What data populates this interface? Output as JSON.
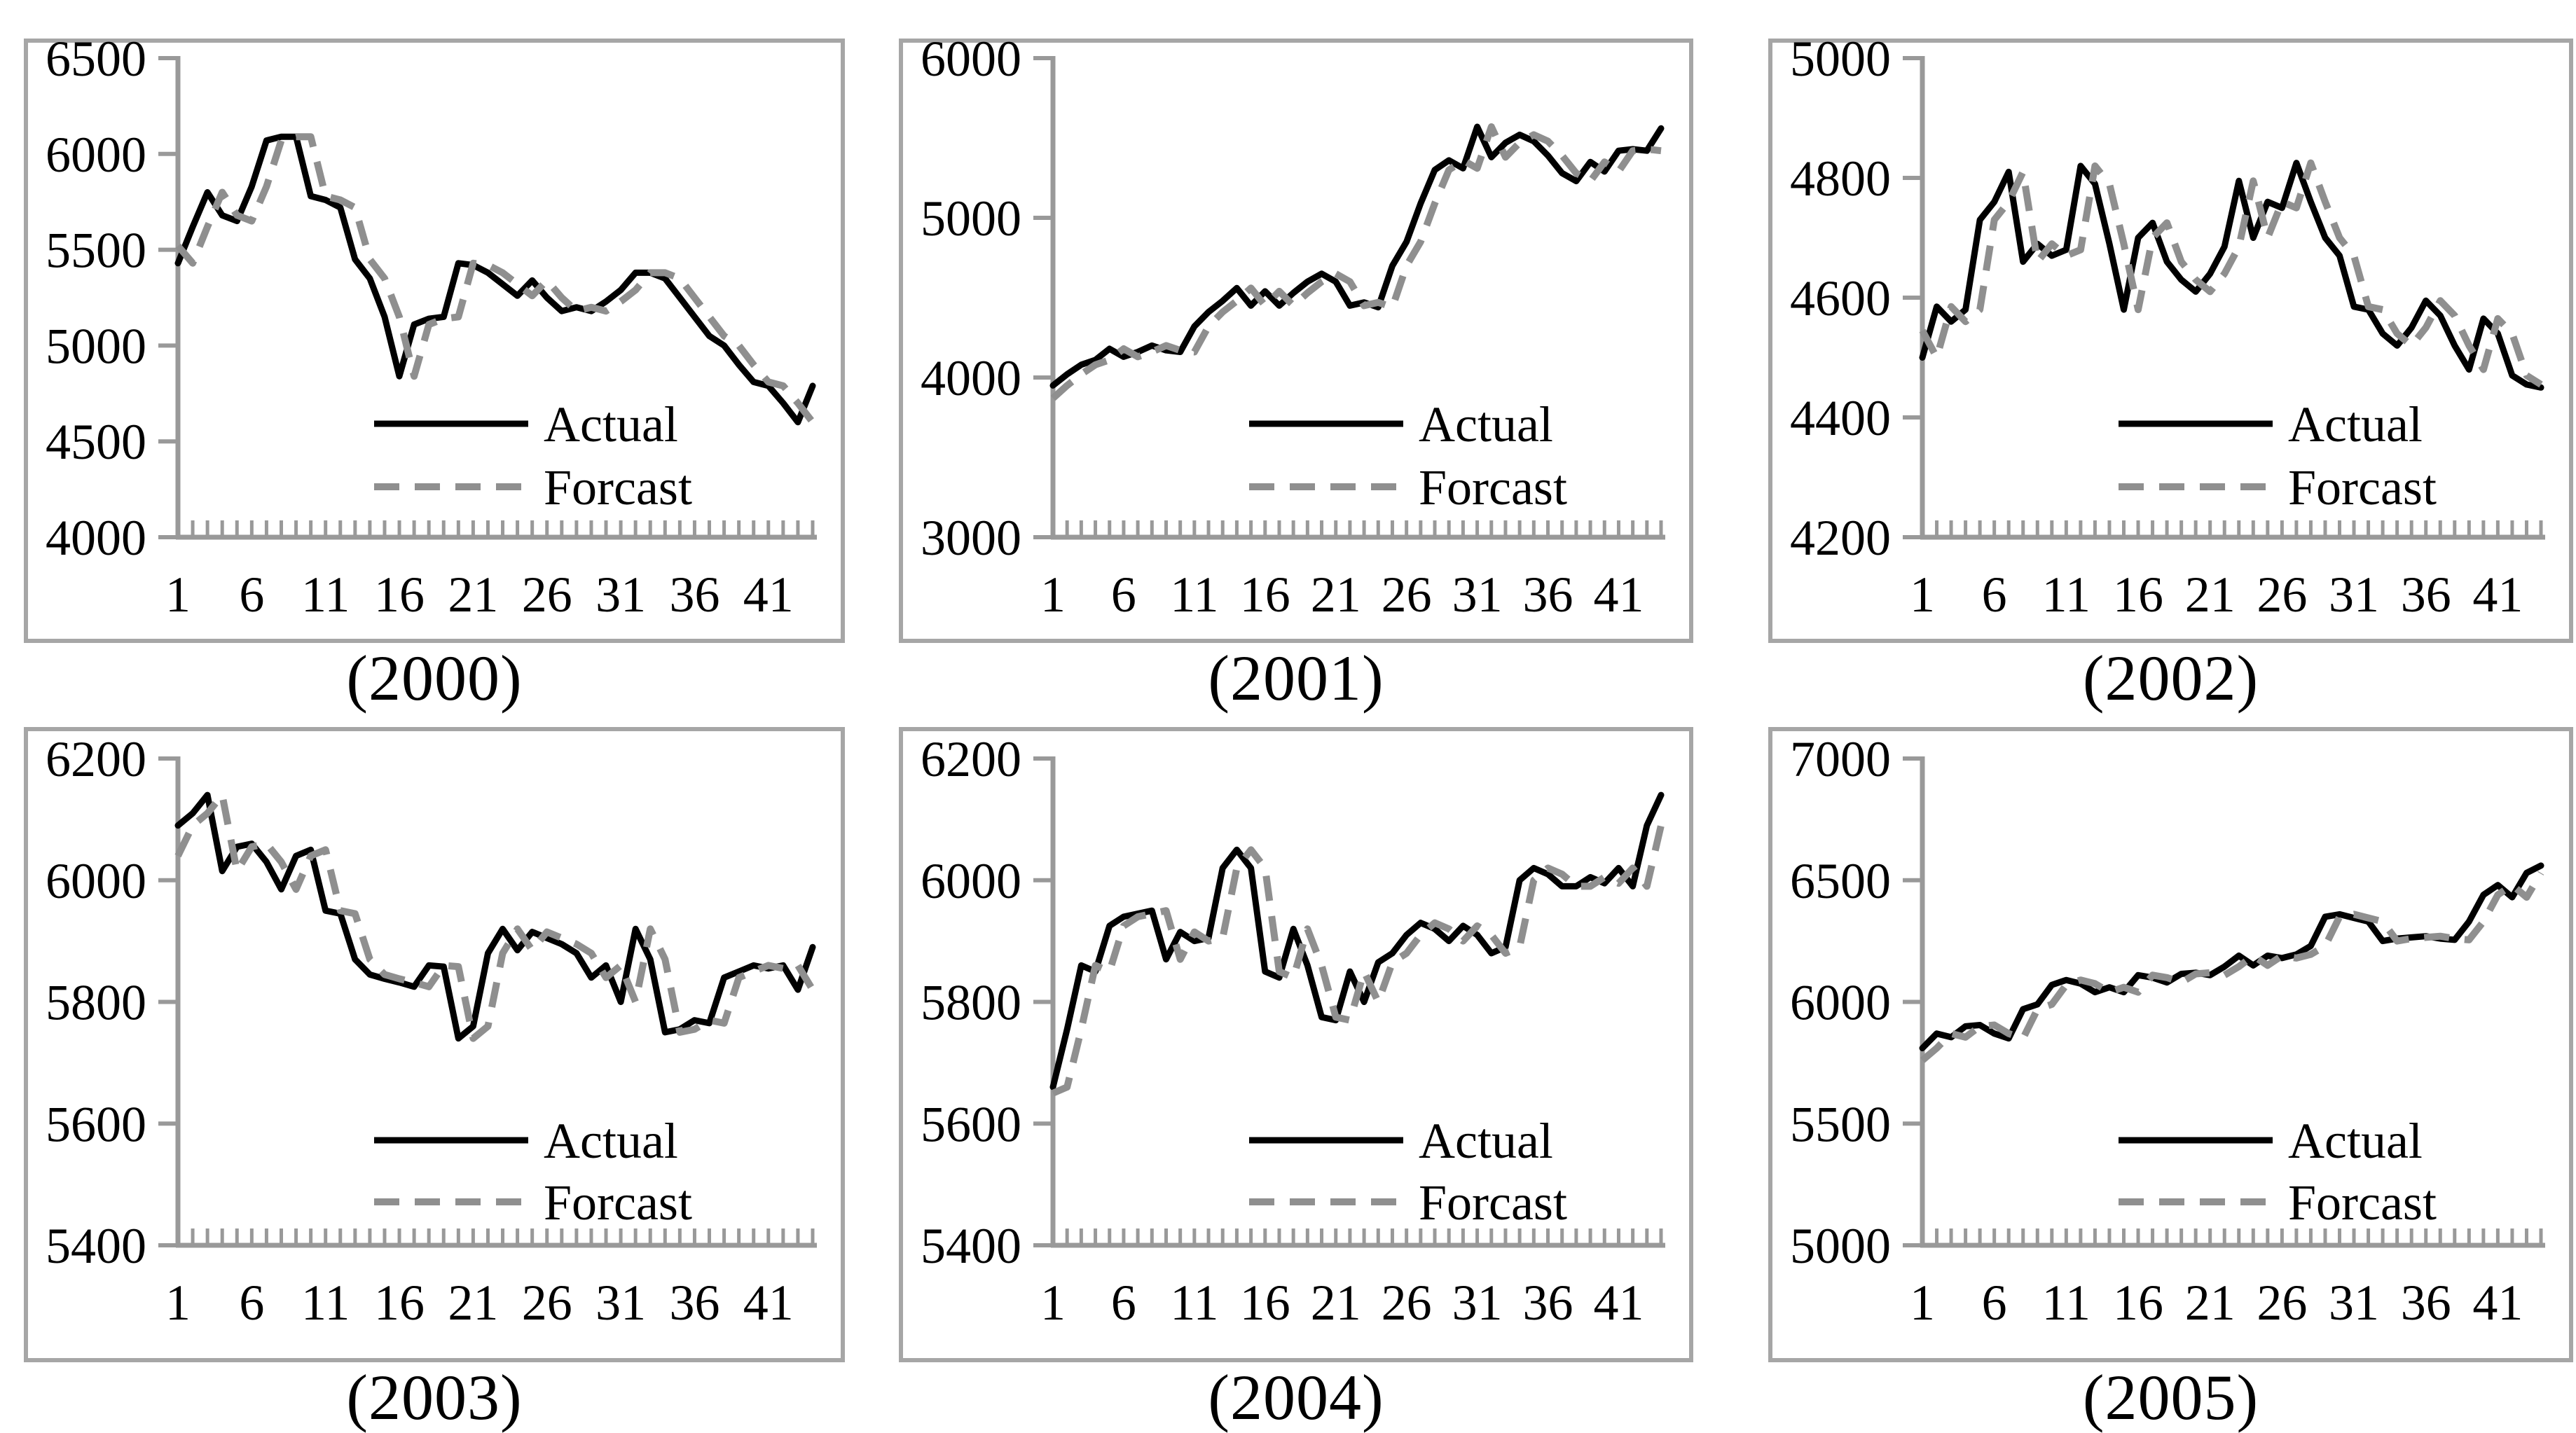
{
  "legend": {
    "actual_label": "Actual",
    "forecast_label": "Forcast"
  },
  "colors": {
    "actual_line": "#000000",
    "forecast_line": "#8f8f8f",
    "axis": "#999999",
    "frame_border": "#a6a6a6",
    "text": "#000000",
    "background": "#ffffff"
  },
  "chart_data": [
    {
      "type": "line",
      "caption": "(2000)",
      "ylim": [
        4000,
        6500
      ],
      "y_ticks": [
        6500,
        6000,
        5500,
        5000,
        4500,
        4000
      ],
      "x_tick_labels": [
        1,
        6,
        11,
        16,
        21,
        26,
        31,
        36,
        41
      ],
      "grid": false,
      "legend_position": "inside-lower-right",
      "series": [
        {
          "name": "Actual",
          "values": [
            5430,
            5620,
            5800,
            5680,
            5650,
            5830,
            6070,
            6090,
            6090,
            5780,
            5760,
            5720,
            5450,
            5350,
            5150,
            4840,
            5110,
            5140,
            5150,
            5430,
            5420,
            5380,
            5320,
            5260,
            5340,
            5250,
            5180,
            5200,
            5180,
            5230,
            5290,
            5380,
            5380,
            5350,
            5250,
            5150,
            5050,
            5000,
            4900,
            4810,
            4790,
            4700,
            4600,
            4790
          ]
        },
        {
          "name": "Forcast",
          "values": [
            5520,
            5430,
            5620,
            5800,
            5680,
            5650,
            5830,
            6070,
            6090,
            6090,
            5780,
            5760,
            5720,
            5450,
            5350,
            5150,
            4840,
            5110,
            5140,
            5150,
            5430,
            5420,
            5380,
            5320,
            5260,
            5340,
            5250,
            5180,
            5200,
            5180,
            5230,
            5290,
            5380,
            5380,
            5350,
            5250,
            5150,
            5050,
            5000,
            4900,
            4810,
            4790,
            4700,
            4600
          ]
        }
      ]
    },
    {
      "type": "line",
      "caption": "(2001)",
      "ylim": [
        3000,
        6000
      ],
      "y_ticks": [
        6000,
        5000,
        4000,
        3000
      ],
      "x_tick_labels": [
        1,
        6,
        11,
        16,
        21,
        26,
        31,
        36,
        41
      ],
      "grid": false,
      "legend_position": "inside-lower-right",
      "series": [
        {
          "name": "Actual",
          "values": [
            3950,
            4020,
            4080,
            4110,
            4180,
            4130,
            4160,
            4200,
            4170,
            4160,
            4320,
            4410,
            4480,
            4560,
            4450,
            4540,
            4450,
            4530,
            4600,
            4650,
            4600,
            4450,
            4470,
            4440,
            4700,
            4850,
            5090,
            5300,
            5360,
            5310,
            5570,
            5380,
            5470,
            5520,
            5480,
            5390,
            5280,
            5230,
            5350,
            5290,
            5420,
            5430,
            5420,
            5560
          ]
        },
        {
          "name": "Forcast",
          "values": [
            3870,
            3950,
            4020,
            4080,
            4110,
            4180,
            4130,
            4160,
            4200,
            4170,
            4160,
            4320,
            4410,
            4480,
            4560,
            4450,
            4540,
            4450,
            4530,
            4600,
            4650,
            4600,
            4450,
            4470,
            4440,
            4700,
            4850,
            5090,
            5300,
            5360,
            5310,
            5570,
            5380,
            5470,
            5520,
            5480,
            5390,
            5280,
            5230,
            5350,
            5290,
            5420,
            5430,
            5420
          ]
        }
      ]
    },
    {
      "type": "line",
      "caption": "(2002)",
      "ylim": [
        4200,
        5000
      ],
      "y_ticks": [
        5000,
        4800,
        4600,
        4400,
        4200
      ],
      "x_tick_labels": [
        1,
        6,
        11,
        16,
        21,
        26,
        31,
        36,
        41
      ],
      "grid": false,
      "legend_position": "inside-lower-right",
      "series": [
        {
          "name": "Actual",
          "values": [
            4500,
            4585,
            4560,
            4580,
            4730,
            4760,
            4810,
            4660,
            4690,
            4670,
            4680,
            4820,
            4790,
            4690,
            4580,
            4700,
            4725,
            4660,
            4630,
            4610,
            4640,
            4685,
            4795,
            4700,
            4760,
            4750,
            4825,
            4760,
            4700,
            4670,
            4585,
            4580,
            4540,
            4520,
            4550,
            4595,
            4570,
            4520,
            4480,
            4565,
            4540,
            4470,
            4455,
            4450
          ]
        },
        {
          "name": "Forcast",
          "values": [
            4545,
            4500,
            4585,
            4560,
            4580,
            4730,
            4760,
            4810,
            4660,
            4690,
            4670,
            4680,
            4820,
            4790,
            4690,
            4580,
            4700,
            4725,
            4660,
            4630,
            4610,
            4640,
            4685,
            4795,
            4700,
            4760,
            4750,
            4825,
            4760,
            4700,
            4670,
            4585,
            4580,
            4540,
            4520,
            4550,
            4595,
            4570,
            4520,
            4480,
            4565,
            4540,
            4470,
            4455
          ]
        }
      ]
    },
    {
      "type": "line",
      "caption": "(2003)",
      "ylim": [
        5400,
        6200
      ],
      "y_ticks": [
        6200,
        6000,
        5800,
        5600,
        5400
      ],
      "x_tick_labels": [
        1,
        6,
        11,
        16,
        21,
        26,
        31,
        36,
        41
      ],
      "grid": false,
      "legend_position": "inside-lower-right",
      "series": [
        {
          "name": "Actual",
          "values": [
            6090,
            6110,
            6140,
            6015,
            6055,
            6060,
            6030,
            5985,
            6040,
            6050,
            5950,
            5945,
            5870,
            5845,
            5838,
            5832,
            5825,
            5860,
            5858,
            5740,
            5760,
            5880,
            5920,
            5885,
            5915,
            5905,
            5895,
            5880,
            5840,
            5860,
            5800,
            5920,
            5870,
            5750,
            5755,
            5770,
            5765,
            5840,
            5850,
            5860,
            5855,
            5860,
            5820,
            5890
          ]
        },
        {
          "name": "Forcast",
          "values": [
            6040,
            6090,
            6110,
            6140,
            6015,
            6055,
            6060,
            6030,
            5985,
            6040,
            6050,
            5950,
            5945,
            5870,
            5845,
            5838,
            5832,
            5825,
            5860,
            5858,
            5740,
            5760,
            5880,
            5920,
            5885,
            5915,
            5905,
            5895,
            5880,
            5840,
            5860,
            5800,
            5920,
            5870,
            5750,
            5755,
            5770,
            5765,
            5840,
            5850,
            5860,
            5855,
            5860,
            5820
          ]
        }
      ]
    },
    {
      "type": "line",
      "caption": "(2004)",
      "ylim": [
        5400,
        6200
      ],
      "y_ticks": [
        6200,
        6000,
        5800,
        5600,
        5400
      ],
      "x_tick_labels": [
        1,
        6,
        11,
        16,
        21,
        26,
        31,
        36,
        41
      ],
      "grid": false,
      "legend_position": "inside-lower-right",
      "series": [
        {
          "name": "Actual",
          "values": [
            5660,
            5755,
            5860,
            5850,
            5925,
            5940,
            5945,
            5950,
            5870,
            5915,
            5900,
            5905,
            6020,
            6050,
            6020,
            5850,
            5840,
            5920,
            5860,
            5775,
            5770,
            5850,
            5800,
            5865,
            5880,
            5910,
            5930,
            5920,
            5900,
            5925,
            5910,
            5880,
            5890,
            6000,
            6020,
            6010,
            5990,
            5990,
            6005,
            5995,
            6020,
            5990,
            6090,
            6140
          ]
        },
        {
          "name": "Forcast",
          "values": [
            5650,
            5660,
            5755,
            5860,
            5850,
            5925,
            5940,
            5945,
            5950,
            5870,
            5915,
            5900,
            5905,
            6020,
            6050,
            6020,
            5850,
            5840,
            5920,
            5860,
            5775,
            5770,
            5850,
            5800,
            5865,
            5880,
            5910,
            5930,
            5920,
            5900,
            5925,
            5910,
            5880,
            5890,
            6000,
            6020,
            6010,
            5990,
            5990,
            6005,
            5995,
            6020,
            5990,
            6090
          ]
        }
      ]
    },
    {
      "type": "line",
      "caption": "(2005)",
      "ylim": [
        5000,
        7000
      ],
      "y_ticks": [
        7000,
        6500,
        6000,
        5500,
        5000
      ],
      "x_tick_labels": [
        1,
        6,
        11,
        16,
        21,
        26,
        31,
        36,
        41
      ],
      "grid": false,
      "legend_position": "inside-lower-right",
      "series": [
        {
          "name": "Actual",
          "values": [
            5810,
            5870,
            5855,
            5900,
            5905,
            5870,
            5850,
            5970,
            5990,
            6070,
            6090,
            6075,
            6040,
            6060,
            6040,
            6110,
            6100,
            6080,
            6115,
            6120,
            6110,
            6145,
            6190,
            6150,
            6190,
            6180,
            6195,
            6230,
            6350,
            6360,
            6345,
            6330,
            6250,
            6260,
            6265,
            6270,
            6260,
            6255,
            6330,
            6440,
            6480,
            6430,
            6530,
            6560
          ]
        },
        {
          "name": "Forcast",
          "values": [
            5760,
            5810,
            5870,
            5855,
            5900,
            5905,
            5870,
            5850,
            5970,
            5990,
            6070,
            6090,
            6075,
            6040,
            6060,
            6040,
            6110,
            6100,
            6080,
            6115,
            6120,
            6110,
            6145,
            6190,
            6150,
            6190,
            6180,
            6195,
            6230,
            6350,
            6360,
            6345,
            6330,
            6250,
            6260,
            6265,
            6270,
            6260,
            6255,
            6330,
            6440,
            6480,
            6430,
            6530
          ]
        }
      ]
    }
  ]
}
